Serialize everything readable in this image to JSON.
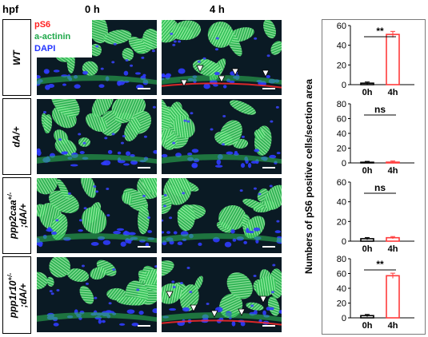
{
  "header": {
    "hpf": "hpf",
    "col0": "0 h",
    "col1": "4 h"
  },
  "legend": {
    "ps6": "pS6",
    "actinin": "a-actinin",
    "dapi": "DAPI"
  },
  "colors": {
    "ps6": "#ff2020",
    "actinin": "#22c35a",
    "dapi": "#2233ff",
    "bar_4h": "#ff3b3b",
    "bar_0h": "#000000"
  },
  "rows": [
    {
      "label_line1": "WT",
      "label_line2": ""
    },
    {
      "label_line1": "dA/+",
      "label_line2": ""
    },
    {
      "label_line1": "ppp2caa",
      "sup": "+/-",
      "label_line2": ";dA/+"
    },
    {
      "label_line1": "ppp1r10",
      "sup": "+/-",
      "label_line2": ";dA/+"
    }
  ],
  "y_axis_label": "Numbers of pS6 positive cells/section area",
  "chart_data": [
    {
      "type": "bar",
      "categories": [
        "0h",
        "4h"
      ],
      "values": [
        1.5,
        51
      ],
      "ylim": [
        0,
        60
      ],
      "yticks": [
        "0",
        "20",
        "40",
        "60"
      ],
      "significance": "**"
    },
    {
      "type": "bar",
      "categories": [
        "0h",
        "4h"
      ],
      "values": [
        0.5,
        1
      ],
      "ylim": [
        0,
        80
      ],
      "yticks": [
        "0",
        "20",
        "40",
        "60",
        "80"
      ],
      "significance": "ns"
    },
    {
      "type": "bar",
      "categories": [
        "0h",
        "4h"
      ],
      "values": [
        2.5,
        3.5
      ],
      "ylim": [
        0,
        60
      ],
      "yticks": [
        "0",
        "20",
        "40",
        "60"
      ],
      "significance": "ns"
    },
    {
      "type": "bar",
      "categories": [
        "0h",
        "4h"
      ],
      "values": [
        3,
        57
      ],
      "ylim": [
        0,
        80
      ],
      "yticks": [
        "0",
        "20",
        "40",
        "60",
        "80"
      ],
      "significance": "**"
    }
  ]
}
